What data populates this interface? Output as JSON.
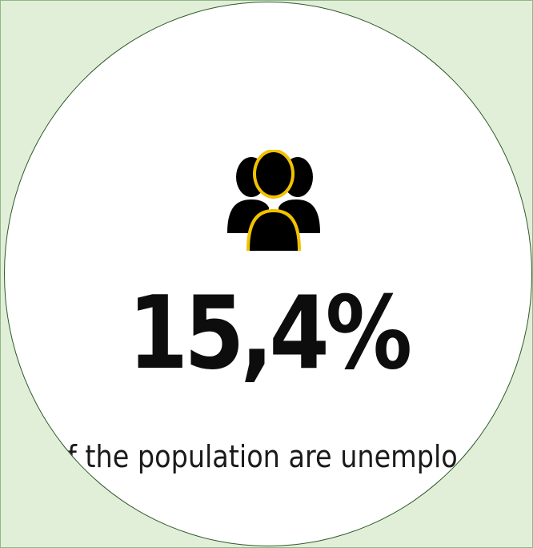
{
  "stat": {
    "value": "15,4%",
    "caption": "f the population are unemplo"
  },
  "icon": {
    "name": "people-group-icon",
    "fill": "#000000",
    "accent": "#f2c200"
  },
  "colors": {
    "page_background": "#e1efd9",
    "badge_background": "#ffffff",
    "badge_border": "#2f5a2a"
  }
}
